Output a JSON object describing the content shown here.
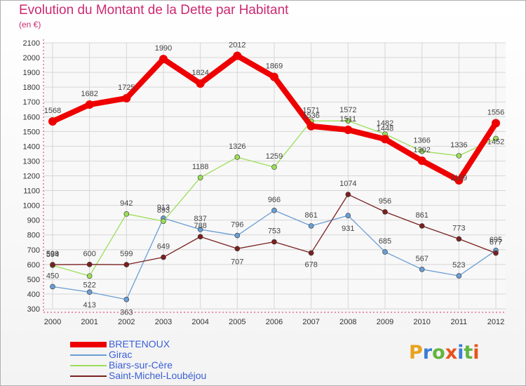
{
  "title": "Evolution du Montant de la Dette par Habitant",
  "subtitle": "(en €)",
  "logo": "Proxiti",
  "logo_colors": [
    "#e8a21c",
    "#3a7fd6",
    "#62b53f",
    "#e8531c",
    "#3a7fd6",
    "#62b53f",
    "#e8531c"
  ],
  "chart_data": {
    "type": "line",
    "title": "Evolution du Montant de la Dette par Habitant",
    "subtitle": "(en €)",
    "x": [
      "2000",
      "2001",
      "2002",
      "2003",
      "2004",
      "2005",
      "2006",
      "2007",
      "2008",
      "2009",
      "2010",
      "2011",
      "2012"
    ],
    "ylim": [
      300,
      2100
    ],
    "yticks": [
      300,
      400,
      500,
      600,
      700,
      800,
      900,
      1000,
      1100,
      1200,
      1300,
      1400,
      1500,
      1600,
      1700,
      1800,
      1900,
      2000,
      2100
    ],
    "grid": true,
    "legend_position": "bottom-left",
    "series": [
      {
        "name": "BRETENOUX",
        "color": "#ee0000",
        "values": [
          1568,
          1682,
          1725,
          1990,
          1824,
          2012,
          1869,
          1536,
          1511,
          1448,
          1302,
          1169,
          1556
        ]
      },
      {
        "name": "Girac",
        "color": "#6a9ed4",
        "values": [
          450,
          413,
          363,
          913,
          837,
          796,
          966,
          861,
          931,
          685,
          567,
          523,
          695
        ]
      },
      {
        "name": "Biars-sur-Cère",
        "color": "#9cde58",
        "values": [
          594,
          522,
          942,
          893,
          1188,
          1326,
          1259,
          1571,
          1572,
          1482,
          1366,
          1336,
          1452
        ]
      },
      {
        "name": "Saint-Michel-Loubéjou",
        "color": "#7a2020",
        "values": [
          599,
          600,
          599,
          649,
          788,
          707,
          753,
          678,
          1074,
          956,
          861,
          773,
          677
        ]
      }
    ]
  }
}
